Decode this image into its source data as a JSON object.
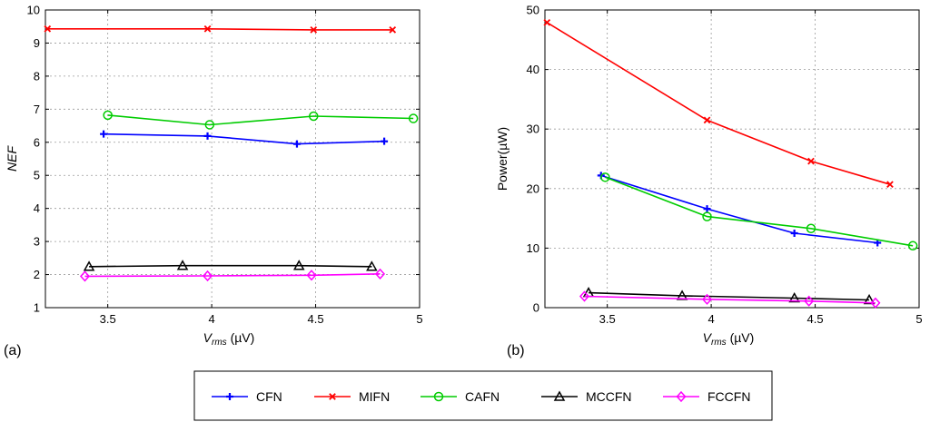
{
  "chart_data": [
    {
      "id": "a",
      "type": "line",
      "panel_label": "(a)",
      "xlabel_main": "V",
      "xlabel_sub": "rms",
      "xlabel_unit": " (µV)",
      "ylabel": "NEF",
      "xlim": [
        3.2,
        5.0
      ],
      "ylim": [
        1,
        10
      ],
      "xticks": [
        "3.5",
        "4",
        "4.5",
        "5"
      ],
      "yticks": [
        "1",
        "2",
        "3",
        "4",
        "5",
        "6",
        "7",
        "8",
        "9",
        "10"
      ],
      "grid": true,
      "series": [
        {
          "name": "CFN",
          "color": "#0000ff",
          "marker": "plus",
          "x": [
            3.48,
            3.98,
            4.41,
            4.83
          ],
          "y": [
            6.25,
            6.19,
            5.95,
            6.03
          ]
        },
        {
          "name": "MIFN",
          "color": "#ff0000",
          "marker": "x",
          "x": [
            3.21,
            3.98,
            4.49,
            4.87
          ],
          "y": [
            9.43,
            9.43,
            9.4,
            9.4
          ]
        },
        {
          "name": "CAFN",
          "color": "#00cc00",
          "marker": "circle",
          "x": [
            3.5,
            3.99,
            4.49,
            4.97
          ],
          "y": [
            6.82,
            6.53,
            6.79,
            6.72
          ]
        },
        {
          "name": "MCCFN",
          "color": "#000000",
          "marker": "triangle",
          "x": [
            3.41,
            3.86,
            4.42,
            4.77
          ],
          "y": [
            2.24,
            2.27,
            2.27,
            2.24
          ]
        },
        {
          "name": "FCCFN",
          "color": "#ff00ff",
          "marker": "diamond",
          "x": [
            3.39,
            3.98,
            4.48,
            4.81
          ],
          "y": [
            1.95,
            1.96,
            1.98,
            2.02
          ]
        }
      ]
    },
    {
      "id": "b",
      "type": "line",
      "panel_label": "(b)",
      "xlabel_main": "V",
      "xlabel_sub": "rms",
      "xlabel_unit": " (µV)",
      "ylabel": "Power(µW)",
      "xlim": [
        3.2,
        5.0
      ],
      "ylim": [
        0,
        50
      ],
      "xticks": [
        "3.5",
        "4",
        "4.5",
        "5"
      ],
      "yticks": [
        "0",
        "10",
        "20",
        "30",
        "40",
        "50"
      ],
      "grid": true,
      "series": [
        {
          "name": "CFN",
          "color": "#0000ff",
          "marker": "plus",
          "x": [
            3.47,
            3.98,
            4.4,
            4.8
          ],
          "y": [
            22.2,
            16.6,
            12.5,
            10.9
          ]
        },
        {
          "name": "MIFN",
          "color": "#ff0000",
          "marker": "x",
          "x": [
            3.21,
            3.98,
            4.48,
            4.86
          ],
          "y": [
            47.9,
            31.5,
            24.6,
            20.7
          ]
        },
        {
          "name": "CAFN",
          "color": "#00cc00",
          "marker": "circle",
          "x": [
            3.49,
            3.98,
            4.48,
            4.97
          ],
          "y": [
            21.9,
            15.3,
            13.3,
            10.4
          ]
        },
        {
          "name": "MCCFN",
          "color": "#000000",
          "marker": "triangle",
          "x": [
            3.41,
            3.86,
            4.4,
            4.76
          ],
          "y": [
            2.5,
            2.0,
            1.6,
            1.3
          ]
        },
        {
          "name": "FCCFN",
          "color": "#ff00ff",
          "marker": "diamond",
          "x": [
            3.39,
            3.98,
            4.47,
            4.79
          ],
          "y": [
            1.9,
            1.4,
            1.1,
            0.8
          ]
        }
      ]
    }
  ],
  "legend": {
    "placement": "bottom-center",
    "entries": [
      {
        "name": "CFN",
        "color": "#0000ff",
        "marker": "plus"
      },
      {
        "name": "MIFN",
        "color": "#ff0000",
        "marker": "x"
      },
      {
        "name": "CAFN",
        "color": "#00cc00",
        "marker": "circle"
      },
      {
        "name": "MCCFN",
        "color": "#000000",
        "marker": "triangle"
      },
      {
        "name": "FCCFN",
        "color": "#ff00ff",
        "marker": "diamond"
      }
    ]
  }
}
